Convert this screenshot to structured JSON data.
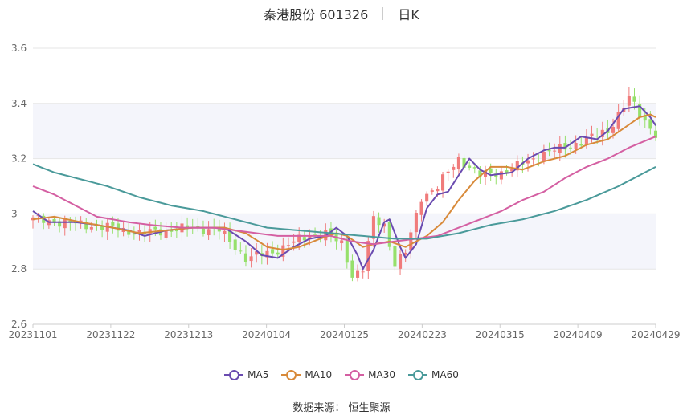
{
  "header": {
    "title": "秦港股份 601326",
    "period": "日K"
  },
  "source_text": "数据来源： 恒生聚源",
  "colors": {
    "up": "#f07b7b",
    "down": "#96e06b",
    "band": "#f4f5fb",
    "grid": "#e6e6e6"
  },
  "chart_data": {
    "type": "candlestick",
    "ylim": [
      2.6,
      3.6
    ],
    "y_ticks": [
      "2.6",
      "2.8",
      "3",
      "3.2",
      "3.4",
      "3.6"
    ],
    "x_start": "20231101",
    "x_end": "20240429",
    "x_ticks": [
      "20231101",
      "20231122",
      "20231213",
      "20240104",
      "20240125",
      "20240223",
      "20240315",
      "20240409",
      "20240429"
    ],
    "n_days": 118,
    "close_anchors": [
      [
        0,
        2.98
      ],
      [
        5,
        2.97
      ],
      [
        10,
        2.96
      ],
      [
        15,
        2.95
      ],
      [
        20,
        2.93
      ],
      [
        25,
        2.94
      ],
      [
        30,
        2.95
      ],
      [
        35,
        2.94
      ],
      [
        40,
        2.84
      ],
      [
        45,
        2.86
      ],
      [
        48,
        2.89
      ],
      [
        52,
        2.92
      ],
      [
        55,
        2.93
      ],
      [
        58,
        2.89
      ],
      [
        60,
        2.78
      ],
      [
        62,
        2.8
      ],
      [
        64,
        2.98
      ],
      [
        66,
        2.96
      ],
      [
        68,
        2.82
      ],
      [
        70,
        2.86
      ],
      [
        73,
        3.06
      ],
      [
        76,
        3.1
      ],
      [
        80,
        3.2
      ],
      [
        84,
        3.14
      ],
      [
        88,
        3.15
      ],
      [
        92,
        3.18
      ],
      [
        96,
        3.22
      ],
      [
        100,
        3.24
      ],
      [
        104,
        3.27
      ],
      [
        108,
        3.3
      ],
      [
        112,
        3.42
      ],
      [
        114,
        3.36
      ],
      [
        117,
        3.29
      ]
    ],
    "series": [
      {
        "name": "MA5",
        "color": "#6a4bb0",
        "values": [
          [
            0,
            3.01
          ],
          [
            3,
            2.97
          ],
          [
            8,
            2.97
          ],
          [
            12,
            2.96
          ],
          [
            18,
            2.94
          ],
          [
            21,
            2.92
          ],
          [
            25,
            2.94
          ],
          [
            30,
            2.95
          ],
          [
            36,
            2.95
          ],
          [
            40,
            2.9
          ],
          [
            43,
            2.85
          ],
          [
            46,
            2.84
          ],
          [
            49,
            2.88
          ],
          [
            52,
            2.91
          ],
          [
            55,
            2.92
          ],
          [
            57,
            2.95
          ],
          [
            59,
            2.92
          ],
          [
            61,
            2.85
          ],
          [
            62,
            2.8
          ],
          [
            64,
            2.87
          ],
          [
            66,
            2.97
          ],
          [
            67,
            2.98
          ],
          [
            69,
            2.88
          ],
          [
            70,
            2.84
          ],
          [
            72,
            2.89
          ],
          [
            74,
            3.02
          ],
          [
            76,
            3.07
          ],
          [
            78,
            3.08
          ],
          [
            80,
            3.14
          ],
          [
            82,
            3.2
          ],
          [
            84,
            3.16
          ],
          [
            86,
            3.14
          ],
          [
            90,
            3.15
          ],
          [
            93,
            3.2
          ],
          [
            96,
            3.23
          ],
          [
            98,
            3.24
          ],
          [
            100,
            3.24
          ],
          [
            103,
            3.28
          ],
          [
            106,
            3.27
          ],
          [
            108,
            3.3
          ],
          [
            111,
            3.38
          ],
          [
            114,
            3.39
          ],
          [
            116,
            3.35
          ],
          [
            117,
            3.32
          ]
        ]
      },
      {
        "name": "MA10",
        "color": "#d88a3a",
        "values": [
          [
            0,
            2.98
          ],
          [
            4,
            2.99
          ],
          [
            9,
            2.97
          ],
          [
            15,
            2.95
          ],
          [
            20,
            2.93
          ],
          [
            25,
            2.94
          ],
          [
            30,
            2.95
          ],
          [
            36,
            2.95
          ],
          [
            40,
            2.93
          ],
          [
            44,
            2.88
          ],
          [
            47,
            2.87
          ],
          [
            50,
            2.88
          ],
          [
            54,
            2.91
          ],
          [
            57,
            2.93
          ],
          [
            59,
            2.92
          ],
          [
            62,
            2.88
          ],
          [
            64,
            2.89
          ],
          [
            67,
            2.9
          ],
          [
            70,
            2.88
          ],
          [
            72,
            2.9
          ],
          [
            74,
            2.92
          ],
          [
            77,
            2.97
          ],
          [
            80,
            3.05
          ],
          [
            83,
            3.12
          ],
          [
            86,
            3.17
          ],
          [
            89,
            3.17
          ],
          [
            92,
            3.16
          ],
          [
            96,
            3.19
          ],
          [
            100,
            3.21
          ],
          [
            104,
            3.25
          ],
          [
            108,
            3.27
          ],
          [
            111,
            3.31
          ],
          [
            114,
            3.35
          ],
          [
            116,
            3.36
          ],
          [
            117,
            3.35
          ]
        ]
      },
      {
        "name": "MA30",
        "color": "#d45fa2",
        "values": [
          [
            0,
            3.1
          ],
          [
            4,
            3.07
          ],
          [
            8,
            3.03
          ],
          [
            12,
            2.99
          ],
          [
            18,
            2.97
          ],
          [
            22,
            2.96
          ],
          [
            28,
            2.95
          ],
          [
            34,
            2.95
          ],
          [
            38,
            2.94
          ],
          [
            42,
            2.93
          ],
          [
            46,
            2.92
          ],
          [
            50,
            2.92
          ],
          [
            56,
            2.92
          ],
          [
            60,
            2.9
          ],
          [
            64,
            2.89
          ],
          [
            68,
            2.9
          ],
          [
            72,
            2.91
          ],
          [
            76,
            2.92
          ],
          [
            80,
            2.95
          ],
          [
            84,
            2.98
          ],
          [
            88,
            3.01
          ],
          [
            92,
            3.05
          ],
          [
            96,
            3.08
          ],
          [
            100,
            3.13
          ],
          [
            104,
            3.17
          ],
          [
            108,
            3.2
          ],
          [
            112,
            3.24
          ],
          [
            117,
            3.28
          ]
        ]
      },
      {
        "name": "MA60",
        "color": "#4a9a9a",
        "values": [
          [
            0,
            3.18
          ],
          [
            4,
            3.15
          ],
          [
            8,
            3.13
          ],
          [
            14,
            3.1
          ],
          [
            20,
            3.06
          ],
          [
            26,
            3.03
          ],
          [
            32,
            3.01
          ],
          [
            38,
            2.98
          ],
          [
            44,
            2.95
          ],
          [
            50,
            2.94
          ],
          [
            56,
            2.93
          ],
          [
            62,
            2.92
          ],
          [
            68,
            2.91
          ],
          [
            74,
            2.91
          ],
          [
            80,
            2.93
          ],
          [
            86,
            2.96
          ],
          [
            92,
            2.98
          ],
          [
            98,
            3.01
          ],
          [
            104,
            3.05
          ],
          [
            110,
            3.1
          ],
          [
            117,
            3.17
          ]
        ]
      }
    ]
  }
}
